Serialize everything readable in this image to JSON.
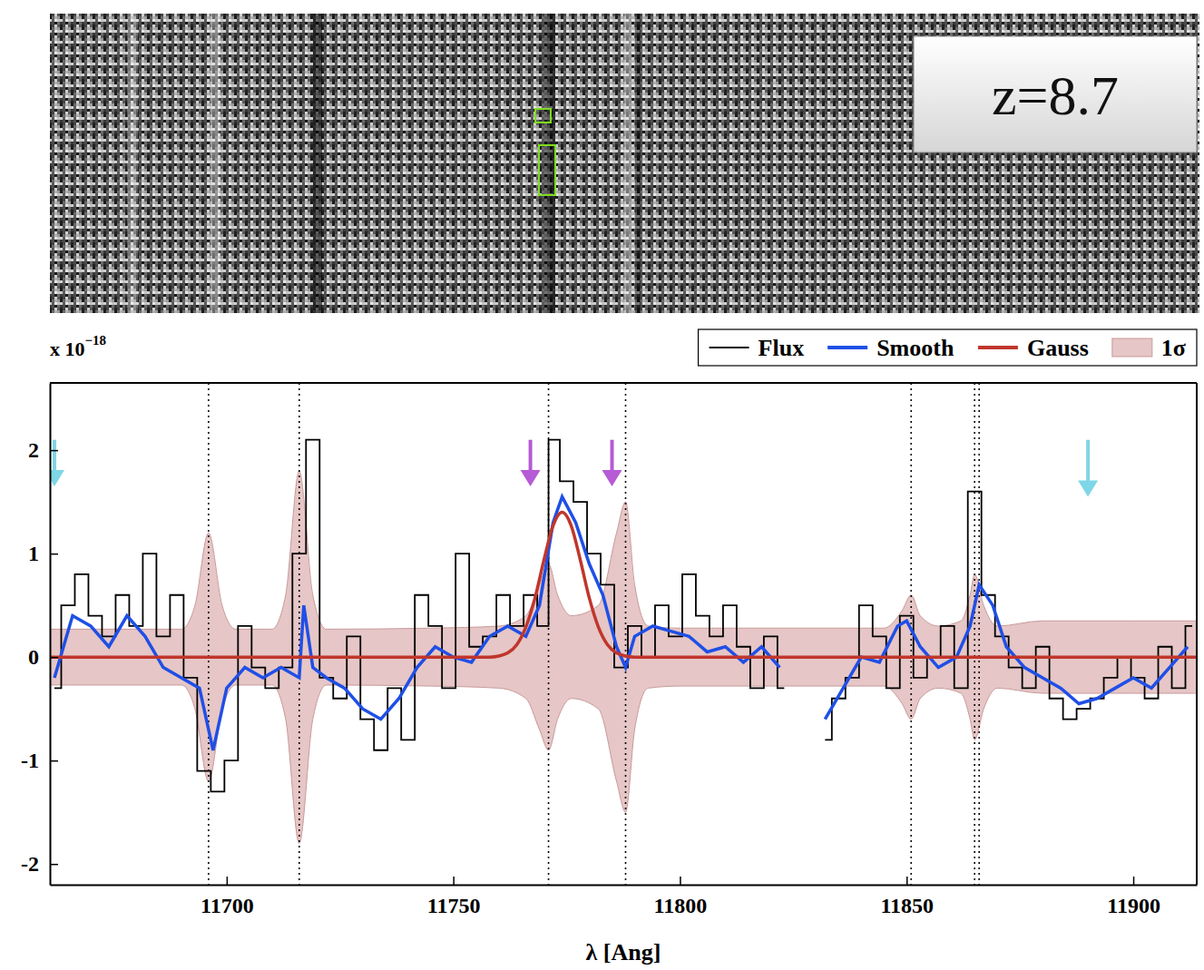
{
  "chart_data": {
    "type": "line",
    "image_label": "z=8.7",
    "y_unit": {
      "base": "x 10",
      "exponent": "−18"
    },
    "x_label": "λ [Ang]",
    "xlim": [
      11661,
      11914
    ],
    "ylim": [
      -2.2,
      2.65
    ],
    "xticks": [
      11700,
      11750,
      11800,
      11850,
      11900
    ],
    "yticks": [
      -2,
      -1,
      0,
      1,
      2
    ],
    "legend": "top",
    "series": [
      {
        "name": "Flux",
        "color": "#000000",
        "type": "step",
        "x": [
          11662,
          11665,
          11668,
          11671,
          11674,
          11677,
          11680,
          11683,
          11686,
          11689,
          11692,
          11695,
          11698,
          11701,
          11704,
          11707,
          11710,
          11713,
          11716,
          11719,
          11722,
          11725,
          11728,
          11731,
          11734,
          11737,
          11740,
          11743,
          11746,
          11749,
          11752,
          11755,
          11758,
          11761,
          11764,
          11767,
          11770,
          11772,
          11775,
          11778,
          11781,
          11784,
          11787,
          11790,
          11793,
          11796,
          11799,
          11802,
          11805,
          11808,
          11811,
          11814,
          11817,
          11820,
          11823,
          11826,
          11829,
          11832,
          11835,
          11838,
          11841,
          11844,
          11847,
          11850,
          11853,
          11856,
          11859,
          11862,
          11865,
          11868,
          11871,
          11874,
          11877,
          11880,
          11883,
          11886,
          11889,
          11892,
          11895,
          11898,
          11901,
          11904,
          11907,
          11910,
          11913
        ],
        "values": [
          -0.3,
          0.5,
          0.8,
          0.4,
          0.2,
          0.6,
          0.3,
          1.0,
          0.2,
          0.6,
          -0.2,
          -1.1,
          -1.3,
          -1.0,
          0.3,
          -0.1,
          -0.3,
          -0.1,
          1.0,
          2.1,
          -0.2,
          -0.4,
          0.2,
          -0.6,
          -0.9,
          -0.3,
          -0.8,
          0.6,
          0.3,
          -0.3,
          1.0,
          0.1,
          0.2,
          0.6,
          0.3,
          0.6,
          0.3,
          2.1,
          1.7,
          1.5,
          1.0,
          0.7,
          -0.1,
          0.3,
          0.0,
          0.5,
          0.2,
          0.8,
          0.4,
          0.2,
          0.5,
          0.1,
          -0.3,
          0.2,
          -0.3,
          null,
          null,
          -0.8,
          -0.4,
          -0.2,
          0.5,
          0.2,
          -0.3,
          0.4,
          -0.2,
          0.0,
          0.3,
          -0.3,
          1.6,
          0.6,
          0.2,
          -0.1,
          -0.3,
          0.1,
          -0.4,
          -0.6,
          -0.5,
          -0.4,
          -0.2,
          0.0,
          -0.2,
          -0.4,
          0.1,
          -0.3,
          0.3
        ]
      },
      {
        "name": "Smooth",
        "color": "#1f4fe6",
        "type": "line",
        "x": [
          11662,
          11666,
          11670,
          11674,
          11678,
          11682,
          11686,
          11690,
          11694,
          11697,
          11700,
          11704,
          11708,
          11712,
          11716,
          11717,
          11719,
          11722,
          11726,
          11730,
          11734,
          11738,
          11742,
          11746,
          11750,
          11754,
          11758,
          11762,
          11766,
          11769,
          11772,
          11774,
          11777,
          11780,
          11783,
          11786,
          11788,
          11790,
          11794,
          11798,
          11802,
          11806,
          11810,
          11814,
          11818,
          11822,
          11826,
          11832,
          11836,
          11840,
          11844,
          11848,
          11850,
          11853,
          11857,
          11861,
          11864,
          11866,
          11869,
          11872,
          11876,
          11880,
          11884,
          11888,
          11892,
          11896,
          11900,
          11904,
          11908,
          11912
        ],
        "values": [
          -0.2,
          0.4,
          0.3,
          0.1,
          0.4,
          0.2,
          -0.1,
          -0.2,
          -0.3,
          -0.9,
          -0.3,
          -0.1,
          -0.2,
          -0.1,
          -0.2,
          0.5,
          -0.1,
          -0.2,
          -0.3,
          -0.5,
          -0.6,
          -0.4,
          -0.1,
          0.1,
          0.0,
          -0.05,
          0.2,
          0.3,
          0.2,
          0.5,
          1.3,
          1.55,
          1.3,
          0.9,
          0.6,
          0.1,
          -0.1,
          0.2,
          0.3,
          0.25,
          0.2,
          0.05,
          0.1,
          -0.05,
          0.1,
          -0.1,
          null,
          -0.6,
          -0.3,
          0.0,
          -0.05,
          0.3,
          0.35,
          0.1,
          -0.1,
          0.0,
          0.3,
          0.7,
          0.5,
          0.1,
          -0.1,
          -0.2,
          -0.3,
          -0.45,
          -0.4,
          -0.3,
          -0.2,
          -0.3,
          -0.1,
          0.1
        ]
      },
      {
        "name": "Gauss",
        "color": "#c0362c",
        "type": "line",
        "x": [
          11661,
          11758,
          11760,
          11762,
          11764,
          11766,
          11768,
          11770,
          11772,
          11774,
          11776,
          11778,
          11780,
          11782,
          11784,
          11786,
          11788,
          11790,
          11914
        ],
        "values": [
          0,
          0,
          0.01,
          0.04,
          0.12,
          0.29,
          0.57,
          0.94,
          1.27,
          1.4,
          1.27,
          0.94,
          0.57,
          0.29,
          0.12,
          0.04,
          0.01,
          0,
          0
        ]
      },
      {
        "name": "1σ",
        "color": "#e6c6c6",
        "type": "area",
        "x": [
          11661,
          11690,
          11693,
          11696,
          11699,
          11702,
          11710,
          11713,
          11716,
          11719,
          11722,
          11745,
          11760,
          11766,
          11769,
          11771,
          11773,
          11776,
          11782,
          11786,
          11788,
          11790,
          11793,
          11800,
          11845,
          11849,
          11851,
          11853,
          11857,
          11862,
          11864,
          11865,
          11867,
          11870,
          11880,
          11900,
          11914
        ],
        "values": [
          0.27,
          0.27,
          0.5,
          1.2,
          0.5,
          0.27,
          0.27,
          0.6,
          1.8,
          0.6,
          0.27,
          0.28,
          0.3,
          0.4,
          0.7,
          0.9,
          0.6,
          0.4,
          0.5,
          1.2,
          1.5,
          0.7,
          0.3,
          0.28,
          0.28,
          0.45,
          0.6,
          0.4,
          0.3,
          0.35,
          0.6,
          0.8,
          0.5,
          0.3,
          0.35,
          0.35,
          0.35
        ],
        "lower": [
          -0.27,
          -0.27,
          -0.5,
          -1.2,
          -0.5,
          -0.27,
          -0.27,
          -0.6,
          -1.8,
          -0.6,
          -0.27,
          -0.28,
          -0.3,
          -0.4,
          -0.7,
          -0.9,
          -0.6,
          -0.4,
          -0.5,
          -1.2,
          -1.5,
          -0.7,
          -0.3,
          -0.28,
          -0.28,
          -0.45,
          -0.6,
          -0.4,
          -0.3,
          -0.35,
          -0.6,
          -0.8,
          -0.5,
          -0.3,
          -0.35,
          -0.35,
          -0.35
        ]
      }
    ],
    "vlines": [
      11696,
      11716,
      11771,
      11788,
      11851,
      11865,
      11866
    ],
    "arrows": [
      {
        "x": 11662,
        "y_top": 2.1,
        "y_tip": 1.65,
        "color": "#7fd6e6"
      },
      {
        "x": 11767,
        "y_top": 2.1,
        "y_tip": 1.65,
        "color": "#b65ad6"
      },
      {
        "x": 11785,
        "y_top": 2.1,
        "y_tip": 1.65,
        "color": "#b65ad6"
      },
      {
        "x": 11890,
        "y_top": 2.1,
        "y_tip": 1.55,
        "color": "#7fd6e6"
      }
    ]
  }
}
